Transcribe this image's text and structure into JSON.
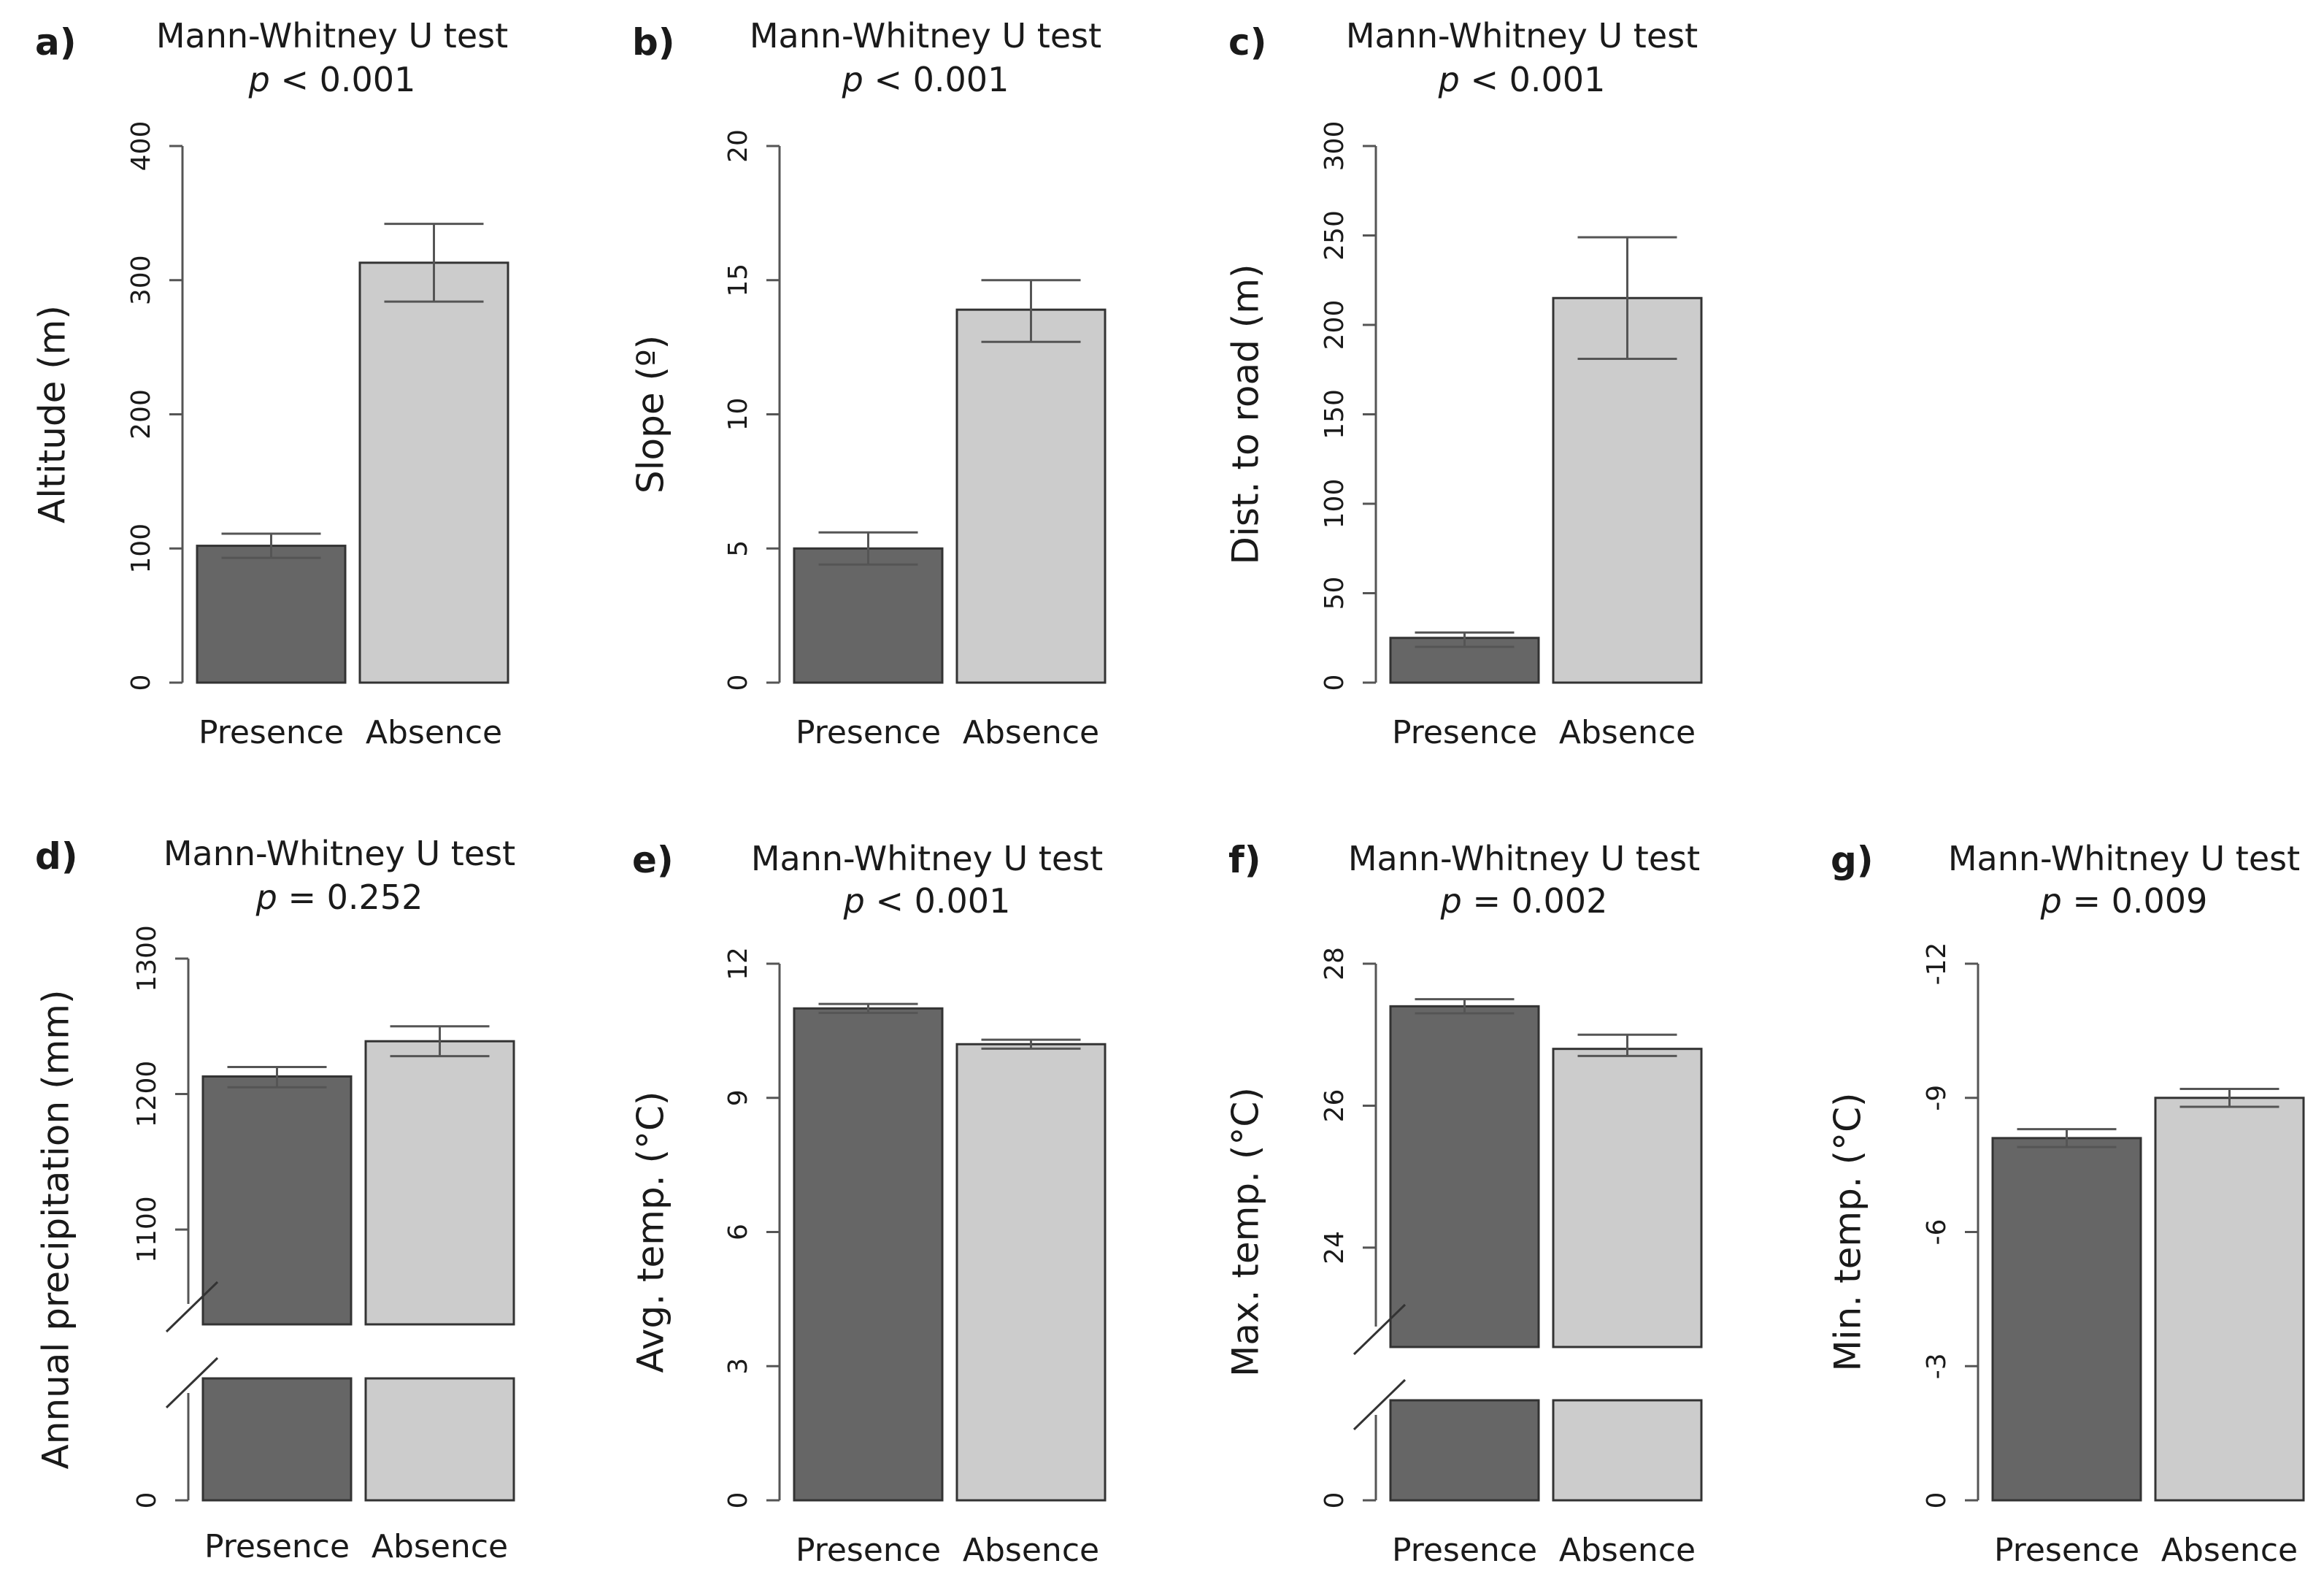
{
  "figure": {
    "colors": {
      "presence": "#666666",
      "absence": "#cccccc"
    },
    "panels_note": "seven bar charts comparing Presence vs Absence"
  },
  "chart_data": [
    {
      "type": "bar",
      "label": "a)",
      "title": "Mann-Whitney U test",
      "p_symbol": "p",
      "p_rest": " < 0.001",
      "ylabel": "Altitude (m)",
      "categories": [
        "Presence",
        "Absence"
      ],
      "values": [
        102,
        313
      ],
      "err_low": [
        93,
        284
      ],
      "err_high": [
        111,
        342
      ],
      "ylim": [
        0,
        400
      ],
      "ticks": [
        {
          "v": 0,
          "t": "0"
        },
        {
          "v": 100,
          "t": "100"
        },
        {
          "v": 200,
          "t": "200"
        },
        {
          "v": 300,
          "t": "300"
        },
        {
          "v": 400,
          "t": "400"
        }
      ]
    },
    {
      "type": "bar",
      "label": "b)",
      "title": "Mann-Whitney U test",
      "p_symbol": "p",
      "p_rest": " < 0.001",
      "ylabel": "Slope (º)",
      "categories": [
        "Presence",
        "Absence"
      ],
      "values": [
        5.0,
        13.9
      ],
      "err_low": [
        4.4,
        12.7
      ],
      "err_high": [
        5.6,
        15.0
      ],
      "ylim": [
        0,
        20
      ],
      "ticks": [
        {
          "v": 0,
          "t": "0"
        },
        {
          "v": 5,
          "t": "5"
        },
        {
          "v": 10,
          "t": "10"
        },
        {
          "v": 15,
          "t": "15"
        },
        {
          "v": 20,
          "t": "20"
        }
      ]
    },
    {
      "type": "bar",
      "label": "c)",
      "title": "Mann-Whitney U test",
      "p_symbol": "p",
      "p_rest": " < 0.001",
      "ylabel": "Dist. to road (m)",
      "categories": [
        "Presence",
        "Absence"
      ],
      "values": [
        25,
        215
      ],
      "err_low": [
        20,
        181
      ],
      "err_high": [
        28,
        249
      ],
      "ylim": [
        0,
        300
      ],
      "ticks": [
        {
          "v": 0,
          "t": "0"
        },
        {
          "v": 50,
          "t": "50"
        },
        {
          "v": 100,
          "t": "100"
        },
        {
          "v": 150,
          "t": "150"
        },
        {
          "v": 200,
          "t": "200"
        },
        {
          "v": 250,
          "t": "250"
        },
        {
          "v": 300,
          "t": "300"
        }
      ]
    },
    {
      "type": "bar",
      "label": "d)",
      "title": "Mann-Whitney U test",
      "p_symbol": "p",
      "p_rest": " = 0.252",
      "ylabel": "Annual precipitation (mm)",
      "categories": [
        "Presence",
        "Absence"
      ],
      "values": [
        1213,
        1239
      ],
      "err_low": [
        1205,
        1228
      ],
      "err_high": [
        1220,
        1250
      ],
      "ylim": [
        0,
        1300
      ],
      "axis_break": [
        0,
        1030
      ],
      "ticks": [
        {
          "v": 0,
          "t": "0"
        },
        {
          "v": 1100,
          "t": "1100"
        },
        {
          "v": 1200,
          "t": "1200"
        },
        {
          "v": 1300,
          "t": "1300"
        }
      ]
    },
    {
      "type": "bar",
      "label": "e)",
      "title": "Mann-Whitney U test",
      "p_symbol": "p",
      "p_rest": " < 0.001",
      "ylabel": "Avg. temp. (°C)",
      "categories": [
        "Presence",
        "Absence"
      ],
      "values": [
        11.0,
        10.2
      ],
      "err_low": [
        10.9,
        10.1
      ],
      "err_high": [
        11.1,
        10.3
      ],
      "ylim": [
        0,
        12
      ],
      "ticks": [
        {
          "v": 0,
          "t": "0"
        },
        {
          "v": 3,
          "t": "3"
        },
        {
          "v": 6,
          "t": "6"
        },
        {
          "v": 9,
          "t": "9"
        },
        {
          "v": 12,
          "t": "12"
        }
      ]
    },
    {
      "type": "bar",
      "label": "f)",
      "title": "Mann-Whitney U test",
      "p_symbol": "p",
      "p_rest": " = 0.002",
      "ylabel": "Max. temp. (°C)",
      "categories": [
        "Presence",
        "Absence"
      ],
      "values": [
        27.4,
        26.8
      ],
      "err_low": [
        27.3,
        26.7
      ],
      "err_high": [
        27.5,
        27.0
      ],
      "ylim": [
        0,
        28
      ],
      "axis_break": [
        0,
        22.6
      ],
      "ticks": [
        {
          "v": 0,
          "t": "0"
        },
        {
          "v": 24,
          "t": "24"
        },
        {
          "v": 26,
          "t": "26"
        },
        {
          "v": 28,
          "t": "28"
        }
      ]
    },
    {
      "type": "bar",
      "label": "g)",
      "title": "Mann-Whitney U test",
      "p_symbol": "p",
      "p_rest": " = 0.009",
      "ylabel": "Min. temp. (°C)",
      "categories": [
        "Presence",
        "Absence"
      ],
      "values": [
        -8.1,
        -9.0
      ],
      "err_low": [
        -7.9,
        -8.8
      ],
      "err_high": [
        -8.3,
        -9.2
      ],
      "ylim": [
        0,
        -12
      ],
      "inverted_axis": true,
      "ticks": [
        {
          "v": 0,
          "t": "0"
        },
        {
          "v": -3,
          "t": "-3"
        },
        {
          "v": -6,
          "t": "-6"
        },
        {
          "v": -9,
          "t": "-9"
        },
        {
          "v": -12,
          "t": "-12"
        }
      ]
    }
  ]
}
